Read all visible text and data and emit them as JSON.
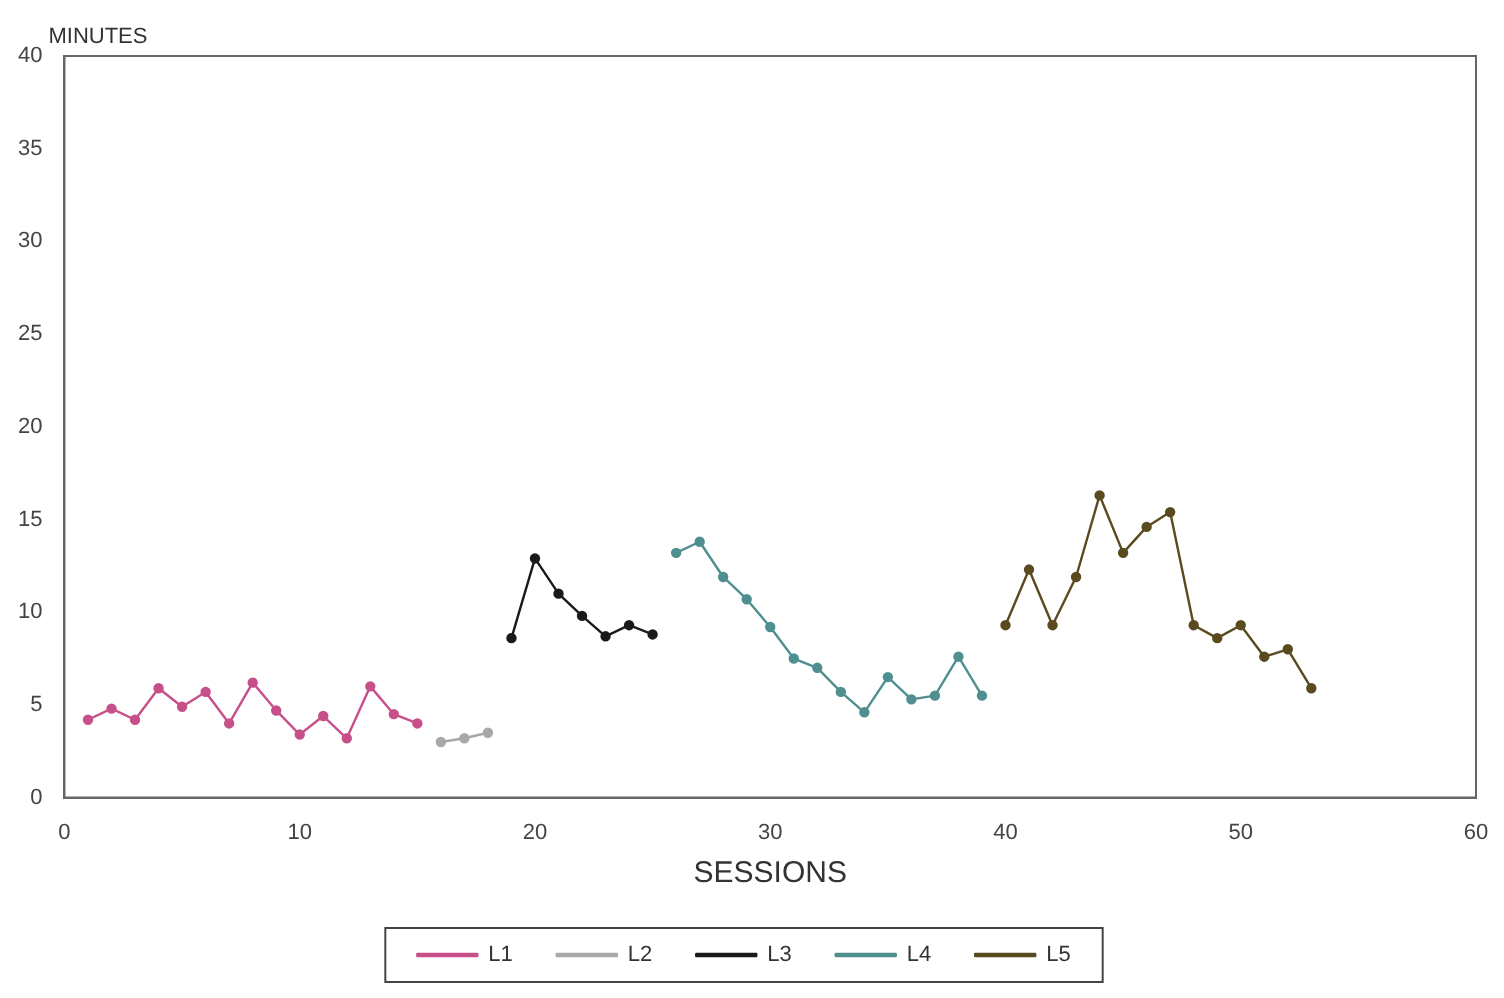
{
  "chart_data": {
    "type": "line",
    "xlabel": "SESSIONS",
    "ylabel": "MINUTES",
    "xlim": [
      0,
      60
    ],
    "xticks": [
      0,
      10,
      20,
      30,
      40,
      50,
      60
    ],
    "ylim": [
      0,
      40
    ],
    "yticks": [
      0,
      5,
      10,
      15,
      20,
      25,
      30,
      35,
      40
    ],
    "grid": false,
    "legend": "bottom",
    "marker": "circle",
    "line_style": "solid",
    "series": [
      {
        "name": "L1",
        "color": "#c8508a",
        "x": [
          1,
          2,
          3,
          4,
          5,
          6,
          7,
          8,
          9,
          10,
          11,
          12,
          13,
          14,
          15
        ],
        "values": [
          4.2,
          4.8,
          4.2,
          5.9,
          4.9,
          5.7,
          4.0,
          6.2,
          4.7,
          3.4,
          4.4,
          3.2,
          6.0,
          4.5,
          4.0
        ]
      },
      {
        "name": "L2",
        "color": "#a8a8a8",
        "x": [
          16,
          17,
          18
        ],
        "values": [
          3.0,
          3.2,
          3.5
        ]
      },
      {
        "name": "L3",
        "color": "#1a1a1a",
        "x": [
          19,
          20,
          21,
          22,
          23,
          24,
          25
        ],
        "values": [
          8.6,
          12.9,
          11.0,
          9.8,
          8.7,
          9.3,
          8.8
        ]
      },
      {
        "name": "L4",
        "color": "#4f8f8f",
        "x": [
          26,
          27,
          28,
          29,
          30,
          31,
          32,
          33,
          34,
          35,
          36,
          37,
          38,
          39
        ],
        "values": [
          13.2,
          13.8,
          11.9,
          10.7,
          9.2,
          7.5,
          7.0,
          5.7,
          4.6,
          6.5,
          5.3,
          5.5,
          7.6,
          5.5
        ]
      },
      {
        "name": "L5",
        "color": "#5a4a20",
        "x": [
          40,
          41,
          42,
          43,
          44,
          45,
          46,
          47,
          48,
          49,
          50,
          51,
          52,
          53
        ],
        "values": [
          9.3,
          12.3,
          9.3,
          11.9,
          16.3,
          13.2,
          14.6,
          15.4,
          9.3,
          8.6,
          9.3,
          7.6,
          8.0,
          5.9
        ]
      }
    ]
  }
}
